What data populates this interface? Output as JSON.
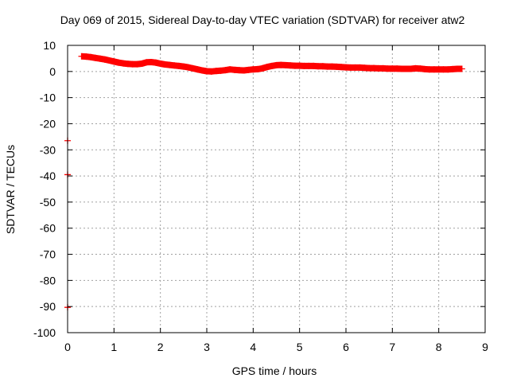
{
  "chart_data": {
    "type": "scatter",
    "title": "Day 069 of 2015, Sidereal Day-to-day VTEC variation (SDTVAR) for receiver atw2",
    "xlabel": "GPS time / hours",
    "ylabel": "SDTVAR / TECUs",
    "xlim": [
      0,
      9
    ],
    "ylim": [
      -100,
      10
    ],
    "xticks": [
      "0",
      "1",
      "2",
      "3",
      "4",
      "5",
      "6",
      "7",
      "8",
      "9"
    ],
    "yticks": [
      "10",
      "0",
      "-10",
      "-20",
      "-30",
      "-40",
      "-50",
      "-60",
      "-70",
      "-80",
      "-90",
      "-100"
    ],
    "grid": true,
    "marker": "+",
    "color": "#ff0000",
    "series": [
      {
        "x": [
          0.0,
          0.0,
          0.0,
          0.3,
          0.4,
          0.5,
          0.6,
          0.7,
          0.8,
          0.9,
          1.0,
          1.1,
          1.2,
          1.3,
          1.4,
          1.5,
          1.6,
          1.7,
          1.8,
          1.9,
          2.0,
          2.1,
          2.2,
          2.3,
          2.4,
          2.5,
          2.6,
          2.7,
          2.8,
          2.9,
          3.0,
          3.1,
          3.2,
          3.3,
          3.4,
          3.5,
          3.6,
          3.7,
          3.8,
          3.9,
          4.0,
          4.1,
          4.2,
          4.3,
          4.4,
          4.5,
          4.6,
          4.7,
          4.8,
          4.9,
          5.0,
          5.1,
          5.2,
          5.3,
          5.4,
          5.5,
          5.6,
          5.7,
          5.8,
          5.9,
          6.0,
          6.1,
          6.2,
          6.3,
          6.4,
          6.5,
          6.6,
          6.7,
          6.8,
          6.9,
          7.0,
          7.1,
          7.2,
          7.3,
          7.4,
          7.5,
          7.6,
          7.7,
          7.8,
          7.9,
          8.0,
          8.1,
          8.2,
          8.3,
          8.4,
          8.5
        ],
        "y": [
          -26.5,
          -39.5,
          -90.3,
          5.8,
          5.7,
          5.5,
          5.2,
          4.9,
          4.6,
          4.2,
          3.8,
          3.4,
          3.1,
          2.9,
          2.8,
          2.8,
          3.0,
          3.5,
          3.6,
          3.4,
          3.0,
          2.7,
          2.5,
          2.3,
          2.1,
          1.9,
          1.6,
          1.2,
          0.8,
          0.4,
          0.1,
          0.0,
          0.2,
          0.3,
          0.5,
          0.8,
          0.6,
          0.5,
          0.4,
          0.6,
          0.8,
          0.9,
          1.2,
          1.7,
          2.1,
          2.4,
          2.5,
          2.4,
          2.3,
          2.2,
          2.2,
          2.1,
          2.1,
          2.1,
          2.0,
          2.0,
          1.9,
          1.9,
          1.8,
          1.7,
          1.6,
          1.5,
          1.5,
          1.5,
          1.4,
          1.3,
          1.3,
          1.2,
          1.2,
          1.1,
          1.1,
          1.1,
          1.0,
          1.0,
          1.0,
          1.2,
          1.1,
          0.9,
          0.8,
          0.8,
          0.8,
          0.8,
          0.8,
          0.9,
          1.0,
          1.0
        ]
      }
    ]
  }
}
